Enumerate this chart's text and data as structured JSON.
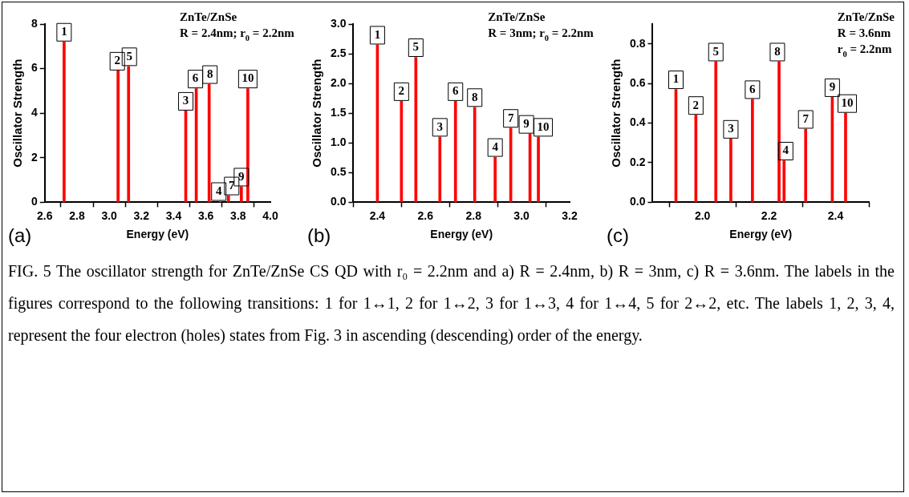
{
  "chart_data": [
    {
      "type": "bar",
      "title": "(a)",
      "xlabel": "Energy (eV)",
      "ylabel": "Oscillator Strength",
      "x": [
        2.72,
        3.055,
        3.12,
        3.475,
        3.54,
        3.62,
        3.69,
        3.74,
        3.82,
        3.86
      ],
      "series": [
        {
          "color": "#ff0000",
          "values": [
            7.2,
            5.9,
            6.1,
            4.1,
            5.1,
            5.3,
            0.05,
            0.3,
            0.7,
            5.1
          ]
        }
      ],
      "xlim": [
        2.6,
        4.0
      ],
      "xticks": [
        {
          "value": 2.6,
          "label": "2.6"
        },
        {
          "value": 2.8,
          "label": "2.8"
        },
        {
          "value": 3.0,
          "label": "3.0"
        },
        {
          "value": 3.2,
          "label": "3.2"
        },
        {
          "value": 3.4,
          "label": "3.4"
        },
        {
          "value": 3.6,
          "label": "3.6"
        },
        {
          "value": 3.8,
          "label": "3.8"
        },
        {
          "value": 4.0,
          "label": "4.0"
        }
      ],
      "ylim": [
        0,
        8
      ],
      "yticks": [
        0,
        2,
        4,
        6,
        8
      ],
      "grid": false,
      "legend": false,
      "annotations": [
        "ZnTe/ZnSe",
        "R = 2.4nm; r$_{0}$ = 2.2nm",
        {
          "text": "1",
          "x": 2.72,
          "y": 7.2
        },
        {
          "text": "2",
          "x": 3.05,
          "y": 5.9
        },
        {
          "text": "3",
          "x": 3.475,
          "y": 4.1
        },
        {
          "text": "4",
          "x": 3.68,
          "y": 0.05
        },
        {
          "text": "5",
          "x": 3.125,
          "y": 6.1
        },
        {
          "text": "6",
          "x": 3.535,
          "y": 5.1
        },
        {
          "text": "7",
          "x": 3.76,
          "y": 0.3
        },
        {
          "text": "8",
          "x": 3.625,
          "y": 5.3
        },
        {
          "text": "9",
          "x": 3.82,
          "y": 0.7
        },
        {
          "text": "10",
          "x": 3.86,
          "y": 5.1
        }
      ]
    },
    {
      "type": "bar",
      "title": "(b)",
      "xlabel": "Energy (eV)",
      "ylabel": "Oscillator Strength",
      "x": [
        2.4,
        2.5,
        2.56,
        2.66,
        2.725,
        2.805,
        2.89,
        2.955,
        3.035,
        3.07
      ],
      "series": [
        {
          "color": "#ff0000",
          "values": [
            2.65,
            1.7,
            2.44,
            1.1,
            1.7,
            1.6,
            0.76,
            1.25,
            1.15,
            1.1
          ]
        }
      ],
      "xlim": [
        2.3,
        3.2
      ],
      "xticks": [
        {
          "value": 2.4,
          "label": "2.4"
        },
        {
          "value": 2.6,
          "label": "2.6"
        },
        {
          "value": 2.8,
          "label": "2.8"
        },
        {
          "value": 3.0,
          "label": "3.0"
        },
        {
          "value": 3.2,
          "label": "3.2"
        }
      ],
      "ylim": [
        0,
        3
      ],
      "yticks": [
        {
          "value": 0,
          "label": "0.0"
        },
        {
          "value": 0.5,
          "label": "0.5"
        },
        {
          "value": 1,
          "label": "1.0"
        },
        {
          "value": 1.5,
          "label": "1.5"
        },
        {
          "value": 2,
          "label": "2.0"
        },
        {
          "value": 2.5,
          "label": "2.5"
        },
        {
          "value": 3,
          "label": "3.0"
        }
      ],
      "grid": false,
      "legend": false,
      "annotations": [
        "ZnTe/ZnSe",
        "R = 3nm; r$_{0}$ = 2.2nm",
        {
          "text": "1",
          "x": 2.4,
          "y": 2.65
        },
        {
          "text": "2",
          "x": 2.5,
          "y": 1.7
        },
        {
          "text": "3",
          "x": 2.66,
          "y": 1.1
        },
        {
          "text": "4",
          "x": 2.89,
          "y": 0.76
        },
        {
          "text": "5",
          "x": 2.56,
          "y": 2.44
        },
        {
          "text": "6",
          "x": 2.725,
          "y": 1.7
        },
        {
          "text": "7",
          "x": 2.955,
          "y": 1.25
        },
        {
          "text": "8",
          "x": 2.805,
          "y": 1.6
        },
        {
          "text": "9",
          "x": 3.02,
          "y": 1.15
        },
        {
          "text": "10",
          "x": 3.09,
          "y": 1.1
        }
      ]
    },
    {
      "type": "bar",
      "title": "(c)",
      "xlabel": "Energy (eV)",
      "ylabel": "Oscillator Strength",
      "x": [
        1.92,
        1.98,
        2.04,
        2.085,
        2.15,
        2.23,
        2.245,
        2.31,
        2.39,
        2.43
      ],
      "series": [
        {
          "color": "#ff0000",
          "values": [
            0.57,
            0.44,
            0.71,
            0.32,
            0.52,
            0.71,
            0.21,
            0.37,
            0.53,
            0.45
          ]
        }
      ],
      "xlim": [
        1.85,
        2.5
      ],
      "xticks": [
        {
          "value": 2.0,
          "label": "2.0"
        },
        {
          "value": 2.2,
          "label": "2.2"
        },
        {
          "value": 2.4,
          "label": "2.4"
        }
      ],
      "ylim": [
        0,
        0.9
      ],
      "yticks": [
        {
          "value": 0,
          "label": "0.0"
        },
        {
          "value": 0.2,
          "label": "0.2"
        },
        {
          "value": 0.4,
          "label": "0.4"
        },
        {
          "value": 0.6,
          "label": "0.6"
        },
        {
          "value": 0.8,
          "label": "0.8"
        }
      ],
      "grid": false,
      "legend": false,
      "annotations": [
        "ZnTe/ZnSe",
        "R = 3.6nm",
        "r$_{0}$ = 2.2nm",
        {
          "text": "1",
          "x": 1.92,
          "y": 0.57
        },
        {
          "text": "2",
          "x": 1.98,
          "y": 0.44
        },
        {
          "text": "3",
          "x": 2.085,
          "y": 0.32
        },
        {
          "text": "4",
          "x": 2.25,
          "y": 0.21
        },
        {
          "text": "5",
          "x": 2.04,
          "y": 0.71
        },
        {
          "text": "6",
          "x": 2.15,
          "y": 0.52
        },
        {
          "text": "7",
          "x": 2.31,
          "y": 0.37
        },
        {
          "text": "8",
          "x": 2.225,
          "y": 0.71
        },
        {
          "text": "9",
          "x": 2.39,
          "y": 0.53
        },
        {
          "text": "10",
          "x": 2.435,
          "y": 0.45
        }
      ]
    },
    {
      "type": "other",
      "annotations": [
        "FIG. 5 The oscillator strength for ZnTe/ZnSe CS QD with r₀ = 2.2nm and a) R = 2.4nm, b) R = 3nm, c) R = 3.6nm. The labels in the figures correspond to the following transitions: 1 for 1↔1, 2 for 1↔2, 3 for 1↔3, 4 for 1↔4, 5 for 2↔2, etc. The labels 1, 2, 3, 4, represent the four electron (holes) states from Fig. 3 in ascending (descending) order of the energy."
      ]
    }
  ]
}
